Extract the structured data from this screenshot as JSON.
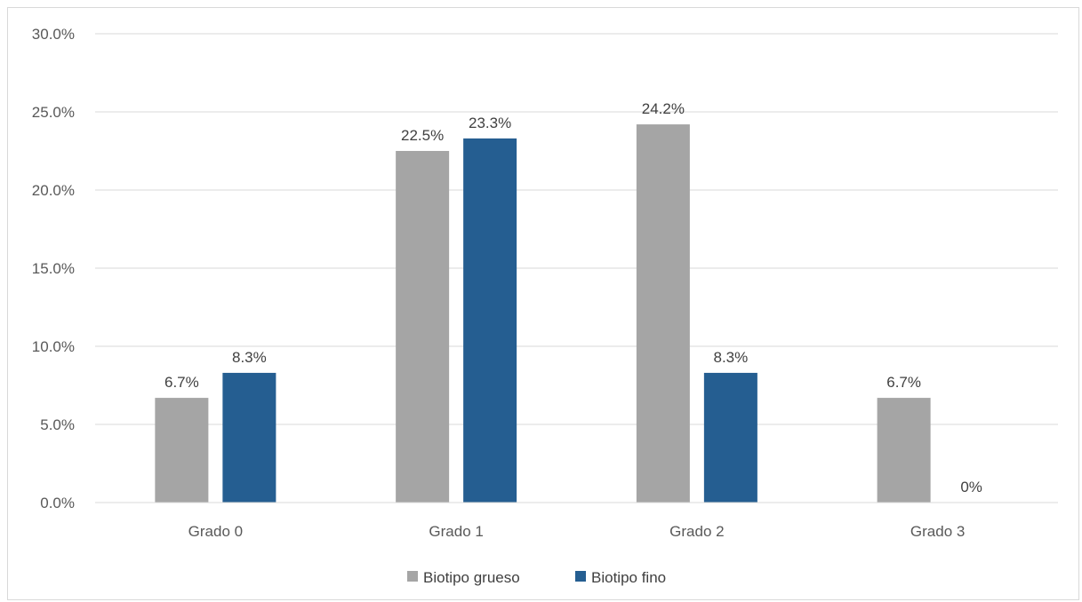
{
  "chart_data": {
    "type": "bar",
    "title": "",
    "xlabel": "",
    "ylabel": "",
    "categories": [
      "Grado 0",
      "Grado 1",
      "Grado 2",
      "Grado 3"
    ],
    "series": [
      {
        "name": "Biotipo grueso",
        "color": "#a5a5a5",
        "values": [
          6.7,
          22.5,
          24.2,
          6.7
        ],
        "labels": [
          "6.7%",
          "22.5%",
          "24.2%",
          "6.7%"
        ]
      },
      {
        "name": "Biotipo fino",
        "color": "#255e91",
        "values": [
          8.3,
          23.3,
          8.3,
          0
        ],
        "labels": [
          "8.3%",
          "23.3%",
          "8.3%",
          "0%"
        ]
      }
    ],
    "ylim": [
      0,
      30
    ],
    "yticks": [
      0,
      5,
      10,
      15,
      20,
      25,
      30
    ],
    "ytick_labels": [
      "0.0%",
      "5.0%",
      "10.0%",
      "15.0%",
      "20.0%",
      "25.0%",
      "30.0%"
    ],
    "grid": true,
    "legend_position": "bottom"
  }
}
